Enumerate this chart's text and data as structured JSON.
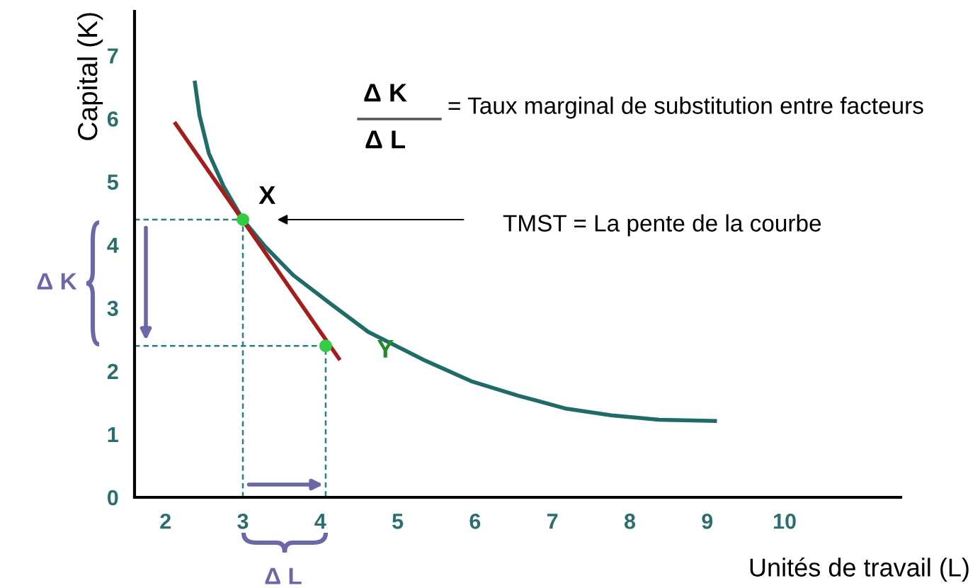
{
  "chart_data": {
    "type": "line",
    "xlabel": "Unités de travail (L)",
    "ylabel": "Capital (K)",
    "xlim": [
      1.6,
      11.5
    ],
    "ylim": [
      0,
      7.7
    ],
    "xticks": [
      2,
      3,
      4,
      5,
      6,
      7,
      8,
      9,
      10
    ],
    "yticks": [
      0,
      1,
      2,
      3,
      4,
      5,
      6,
      7
    ],
    "grid": false,
    "legend": false,
    "series": [
      {
        "color": "#1e6b68",
        "x": [
          2.38,
          2.44,
          2.56,
          2.75,
          3.0,
          3.29,
          3.65,
          4.13,
          4.62,
          5.35,
          5.95,
          6.56,
          7.16,
          7.76,
          8.38,
          9.1
        ],
        "values": [
          6.57,
          6.05,
          5.45,
          4.93,
          4.4,
          3.97,
          3.52,
          3.07,
          2.62,
          2.17,
          1.84,
          1.61,
          1.41,
          1.3,
          1.23,
          1.21
        ]
      },
      {
        "color": "#a61c1c",
        "x": [
          2.13,
          4.24
        ],
        "values": [
          5.92,
          2.2
        ]
      },
      {
        "color": "#2a7f7f",
        "line_style": "dashed",
        "x": [
          1.6,
          3.0,
          3.0
        ],
        "values": [
          4.4,
          4.4,
          0
        ]
      },
      {
        "color": "#2a7f7f",
        "line_style": "dashed",
        "x": [
          1.6,
          4.07,
          4.07
        ],
        "values": [
          2.4,
          2.4,
          0
        ]
      },
      {
        "type": "scatter",
        "color": "#33cc44",
        "marker": "circle",
        "x": [
          3.0,
          4.07
        ],
        "values": [
          4.4,
          2.4
        ]
      }
    ],
    "annotations": [
      {
        "text": "X",
        "x": 3.0,
        "y": 4.4
      },
      {
        "text": "Y",
        "x": 4.07,
        "y": 2.4
      },
      "Δ K",
      "Δ L",
      "= Taux marginal de substitution entre facteurs",
      "TMST = La pente de la courbe",
      "Δ K",
      "Δ L"
    ]
  }
}
